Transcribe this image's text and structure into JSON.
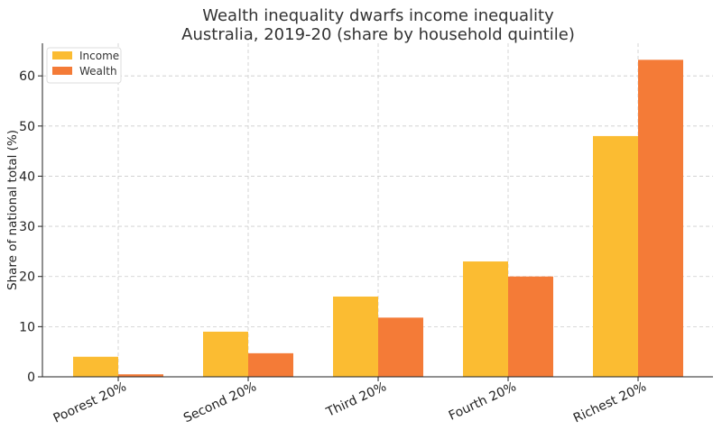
{
  "chart_data": {
    "type": "bar",
    "title": "Wealth inequality dwarfs income inequality",
    "subtitle": "Australia, 2019-20 (share by household quintile)",
    "xlabel": "",
    "ylabel": "Share of national total (%)",
    "categories": [
      "Poorest 20%",
      "Second 20%",
      "Third 20%",
      "Fourth 20%",
      "Richest 20%"
    ],
    "series": [
      {
        "name": "Income",
        "color": "#fbbc32",
        "values": [
          4,
          9,
          16,
          23,
          48
        ]
      },
      {
        "name": "Wealth",
        "color": "#f47b37",
        "values": [
          0.5,
          4.7,
          11.8,
          20,
          63.2
        ]
      }
    ],
    "ylim": [
      0,
      66.5
    ],
    "yticks": [
      0,
      10,
      20,
      30,
      40,
      50,
      60
    ],
    "grid": true,
    "legend_position": "top-left"
  }
}
